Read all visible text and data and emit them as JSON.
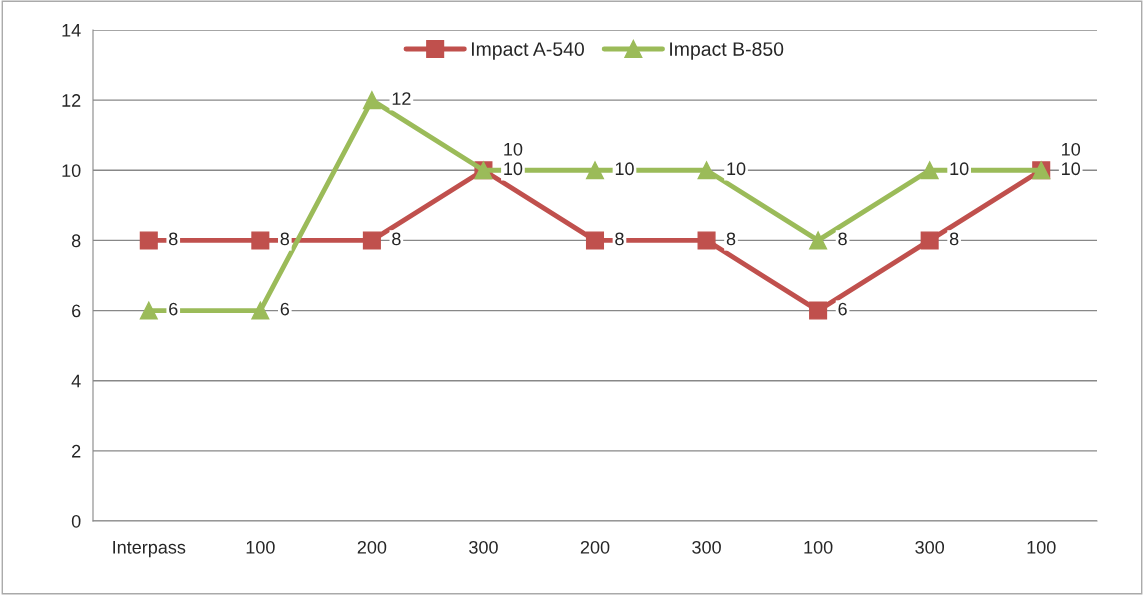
{
  "chart_data": {
    "type": "line",
    "categories": [
      "Interpass",
      "100",
      "200",
      "300",
      "200",
      "300",
      "100",
      "300",
      "100"
    ],
    "series": [
      {
        "name": "Impact A-540",
        "color": "#c0504d",
        "marker": "square",
        "values": [
          8,
          8,
          8,
          10,
          8,
          8,
          6,
          8,
          10
        ]
      },
      {
        "name": "Impact B-850",
        "color": "#9bbb59",
        "marker": "triangle",
        "values": [
          6,
          6,
          12,
          10,
          10,
          10,
          8,
          10,
          10
        ]
      }
    ],
    "ylim": [
      0,
      14
    ],
    "yticks": [
      0,
      2,
      4,
      6,
      8,
      10,
      12,
      14
    ],
    "grid": "y",
    "legend": "top",
    "data_labels": true
  }
}
